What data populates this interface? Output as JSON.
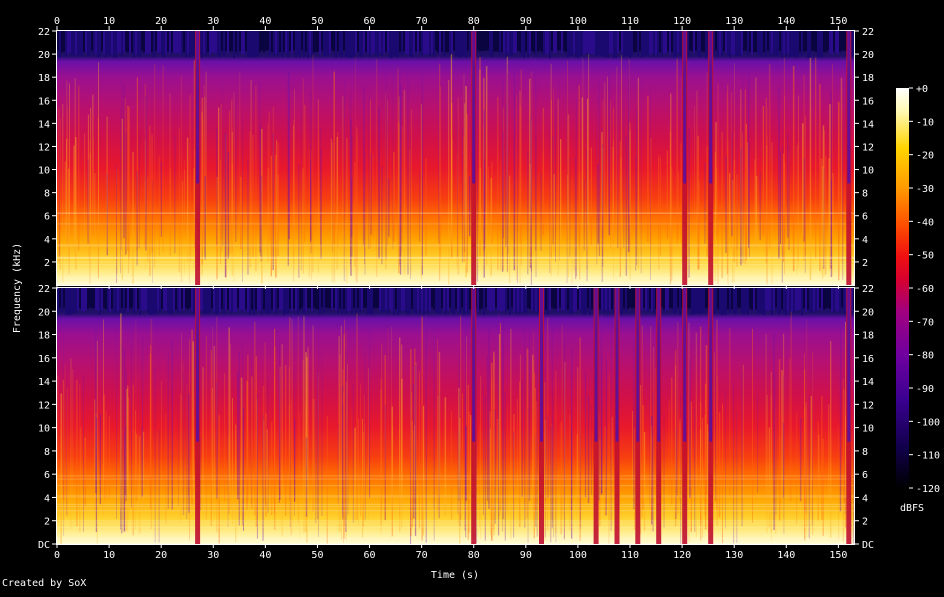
{
  "credit": "Created by SoX",
  "chart_data": {
    "type": "heatmap",
    "title": "",
    "xlabel": "Time (s)",
    "ylabel": "Frequency (kHz)",
    "xlim": [
      0,
      153
    ],
    "ylim": [
      0,
      22
    ],
    "x_ticks": [
      "0",
      "10",
      "20",
      "30",
      "40",
      "50",
      "60",
      "70",
      "80",
      "90",
      "100",
      "110",
      "120",
      "130",
      "140",
      "150"
    ],
    "y_ticks_top": [
      "22",
      "20",
      "18",
      "16",
      "14",
      "12",
      "10",
      "8",
      "6",
      "4",
      "2"
    ],
    "y_ticks_bottom": [
      "22",
      "20",
      "18",
      "16",
      "14",
      "12",
      "10",
      "8",
      "6",
      "4",
      "2",
      "DC"
    ],
    "channels": 2,
    "energy_cutoff_khz": 20,
    "dropouts_s": {
      "both": [
        27,
        80,
        120.5,
        125.5,
        152
      ],
      "bottom_only": [
        93,
        103.5,
        107.5,
        111.5,
        115.5
      ]
    },
    "colorbar": {
      "label": "dBFS",
      "ticks": [
        "+0",
        "-10",
        "-20",
        "-30",
        "-40",
        "-50",
        "-60",
        "-70",
        "-80",
        "-90",
        "-100",
        "-110",
        "-120"
      ],
      "range": [
        -120,
        0
      ]
    }
  },
  "colors": {
    "background": "#000000",
    "palette": [
      "#000000",
      "#10004a",
      "#3a0090",
      "#6e00a0",
      "#a00080",
      "#d60030",
      "#f01010",
      "#ff5000",
      "#ff9a00",
      "#ffd400",
      "#fff8b0",
      "#ffffff"
    ]
  }
}
